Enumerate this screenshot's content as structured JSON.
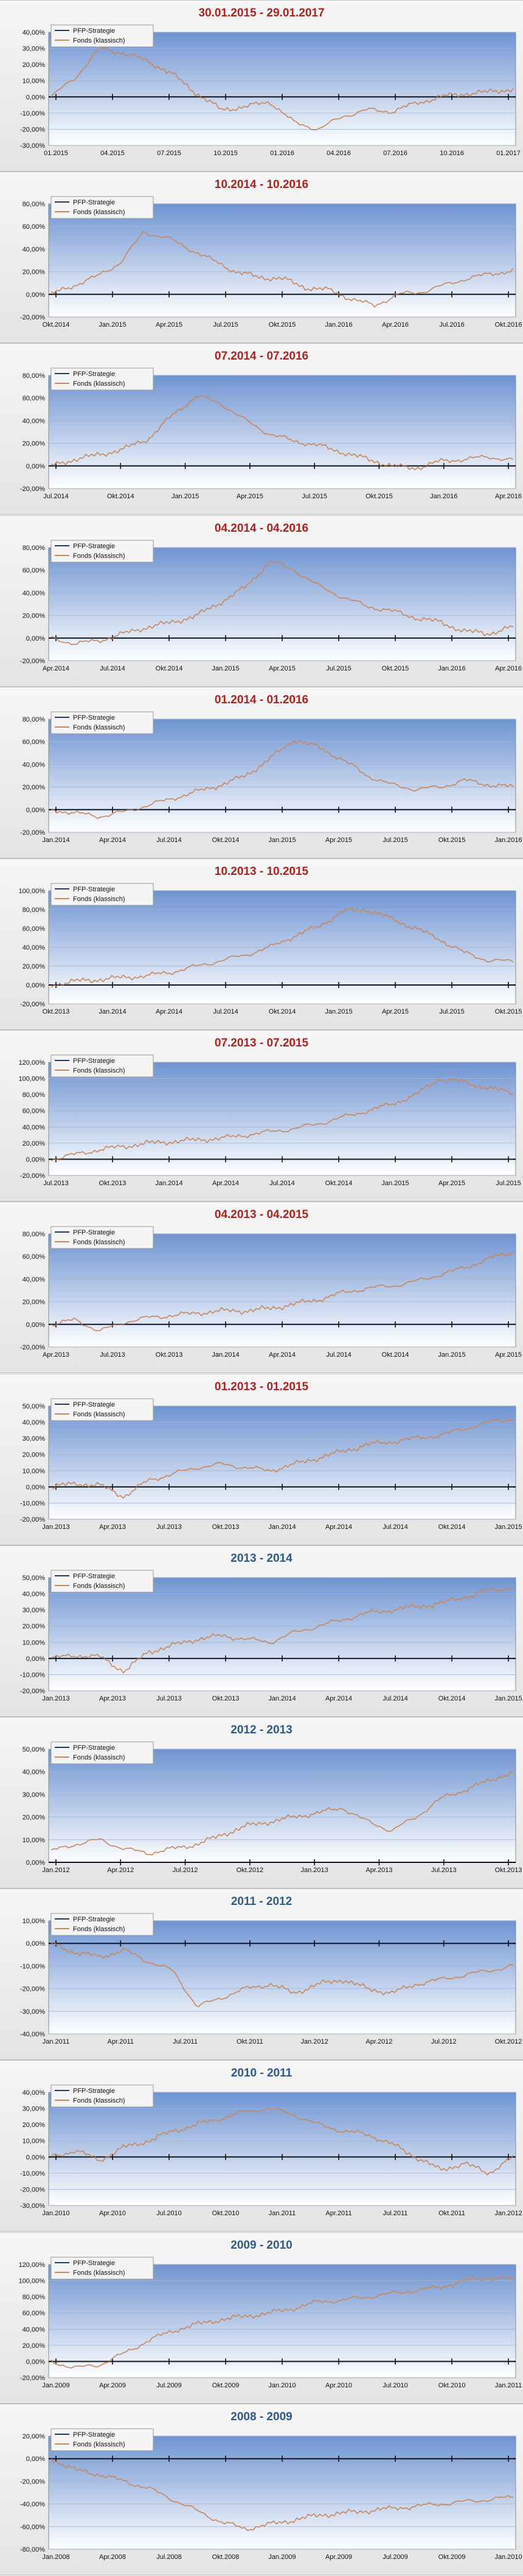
{
  "colors": {
    "strategy": "#1f3864",
    "fund": "#c8865a",
    "title_recent": "#b21f1f",
    "title_annual": "#2e5a8a",
    "plot_top": "#6f94d2",
    "plot_bottom": "#ffffff"
  },
  "legend": {
    "strategy": "PFP-Strategie",
    "fund": "Fonds (klassisch)"
  },
  "chart_data": [
    {
      "type": "line",
      "title": "30.01.2015 - 29.01.2017",
      "title_style": "recent",
      "yticks": [
        40,
        30,
        20,
        10,
        0,
        -10,
        -20,
        -30
      ],
      "ylim": [
        -30,
        40
      ],
      "x_labels": [
        "01.2015",
        "04.2015",
        "07.2015",
        "10.2015",
        "01.2016",
        "04.2016",
        "07.2016",
        "10.2016",
        "01.2017"
      ],
      "series": [
        {
          "name": "Fonds (klassisch)",
          "values": [
            0,
            12,
            30,
            27,
            22,
            14,
            2,
            -8,
            -6,
            -3,
            -16,
            -20,
            -12,
            -8,
            -9,
            -4,
            0,
            2,
            3,
            5
          ]
        },
        {
          "name": "PFP-Strategie",
          "values": [
            0,
            0,
            0,
            0,
            0,
            0,
            0,
            0,
            0,
            0,
            0,
            0,
            0,
            0,
            0,
            0,
            0,
            0,
            0,
            0
          ]
        }
      ]
    },
    {
      "type": "line",
      "title": "10.2014 - 10.2016",
      "title_style": "recent",
      "yticks": [
        80,
        60,
        40,
        20,
        0,
        -20
      ],
      "ylim": [
        -20,
        80
      ],
      "x_labels": [
        "Okt.2014",
        "Jan.2015",
        "Apr.2015",
        "Jul.2015",
        "Okt.2015",
        "Jan.2016",
        "Apr.2016",
        "Jul.2016",
        "Okt.2016"
      ],
      "series": [
        {
          "name": "Fonds (klassisch)",
          "values": [
            0,
            8,
            16,
            28,
            55,
            50,
            40,
            30,
            20,
            15,
            14,
            6,
            4,
            -4,
            -10,
            0,
            2,
            8,
            14,
            18,
            21
          ]
        },
        {
          "name": "PFP-Strategie",
          "values": [
            0,
            0,
            0,
            0,
            0,
            0,
            0,
            0,
            0,
            0,
            0,
            0,
            0,
            0,
            0,
            0,
            0,
            0,
            0,
            0,
            0
          ]
        }
      ]
    },
    {
      "type": "line",
      "title": "07.2014 - 07.2016",
      "title_style": "recent",
      "yticks": [
        80,
        60,
        40,
        20,
        0,
        -20
      ],
      "ylim": [
        -20,
        80
      ],
      "x_labels": [
        "Jul.2014",
        "Okt.2014",
        "Jan.2015",
        "Apr.2015",
        "Jul.2015",
        "Okt.2015",
        "Jan.2016",
        "Apr.2016"
      ],
      "series": [
        {
          "name": "Fonds (klassisch)",
          "values": [
            0,
            6,
            10,
            15,
            24,
            45,
            62,
            55,
            40,
            28,
            22,
            18,
            12,
            6,
            0,
            -2,
            4,
            6,
            8,
            5
          ]
        },
        {
          "name": "PFP-Strategie",
          "values": [
            0,
            0,
            0,
            0,
            0,
            0,
            0,
            0,
            0,
            0,
            0,
            0,
            0,
            0,
            0,
            0,
            0,
            0,
            0,
            0
          ]
        }
      ]
    },
    {
      "type": "line",
      "title": "04.2014 - 04.2016",
      "title_style": "recent",
      "yticks": [
        80,
        60,
        40,
        20,
        0,
        -20
      ],
      "ylim": [
        -20,
        80
      ],
      "x_labels": [
        "Apr.2014",
        "Jul.2014",
        "Okt.2014",
        "Jan.2015",
        "Apr.2015",
        "Jul.2015",
        "Okt.2015",
        "Jan.2016",
        "Apr.2016"
      ],
      "series": [
        {
          "name": "Fonds (klassisch)",
          "values": [
            0,
            -5,
            -2,
            4,
            10,
            14,
            20,
            32,
            45,
            68,
            60,
            46,
            36,
            28,
            24,
            18,
            14,
            6,
            4,
            10
          ]
        },
        {
          "name": "PFP-Strategie",
          "values": [
            0,
            0,
            0,
            0,
            0,
            0,
            0,
            0,
            0,
            0,
            0,
            0,
            0,
            0,
            0,
            0,
            0,
            0,
            0,
            0
          ]
        }
      ]
    },
    {
      "type": "line",
      "title": "01.2014 - 01.2016",
      "title_style": "recent",
      "yticks": [
        80,
        60,
        40,
        20,
        0,
        -20
      ],
      "ylim": [
        -20,
        80
      ],
      "x_labels": [
        "Jan.2014",
        "Apr.2014",
        "Jul.2014",
        "Okt.2014",
        "Jan.2015",
        "Apr.2015",
        "Jul.2015",
        "Okt.2015",
        "Jan.2016"
      ],
      "series": [
        {
          "name": "Fonds (klassisch)",
          "values": [
            0,
            -3,
            -6,
            -2,
            4,
            10,
            16,
            22,
            30,
            45,
            62,
            55,
            44,
            30,
            22,
            18,
            20,
            26,
            22,
            20
          ]
        },
        {
          "name": "PFP-Strategie",
          "values": [
            0,
            0,
            0,
            0,
            0,
            0,
            0,
            0,
            0,
            0,
            0,
            0,
            0,
            0,
            0,
            0,
            0,
            0,
            0,
            0
          ]
        }
      ]
    },
    {
      "type": "line",
      "title": "10.2013 - 10.2015",
      "title_style": "recent",
      "yticks": [
        100,
        80,
        60,
        40,
        20,
        0,
        -20
      ],
      "ylim": [
        -20,
        100
      ],
      "x_labels": [
        "Okt.2013",
        "Jan.2014",
        "Apr.2014",
        "Jul.2014",
        "Okt.2014",
        "Jan.2015",
        "Apr.2015",
        "Jul.2015",
        "Okt.2015"
      ],
      "series": [
        {
          "name": "Fonds (klassisch)",
          "values": [
            0,
            4,
            6,
            8,
            10,
            14,
            20,
            26,
            32,
            40,
            52,
            62,
            78,
            80,
            70,
            60,
            48,
            34,
            26,
            25
          ]
        },
        {
          "name": "PFP-Strategie",
          "values": [
            0,
            0,
            0,
            0,
            0,
            0,
            0,
            0,
            0,
            0,
            0,
            0,
            0,
            0,
            0,
            0,
            0,
            0,
            0,
            0
          ]
        }
      ]
    },
    {
      "type": "line",
      "title": "07.2013 - 07.2015",
      "title_style": "recent",
      "yticks": [
        120,
        100,
        80,
        60,
        40,
        20,
        0,
        -20
      ],
      "ylim": [
        -20,
        120
      ],
      "x_labels": [
        "Jul.2013",
        "Okt.2013",
        "Jan.2014",
        "Apr.2014",
        "Jul.2014",
        "Okt.2014",
        "Jan.2015",
        "Apr.2015",
        "Jul.2015"
      ],
      "series": [
        {
          "name": "Fonds (klassisch)",
          "values": [
            0,
            6,
            12,
            16,
            20,
            22,
            24,
            26,
            30,
            34,
            38,
            44,
            52,
            60,
            68,
            80,
            100,
            95,
            88,
            82
          ]
        },
        {
          "name": "PFP-Strategie",
          "values": [
            0,
            0,
            0,
            0,
            0,
            0,
            0,
            0,
            0,
            0,
            0,
            0,
            0,
            0,
            0,
            0,
            0,
            0,
            0,
            0
          ]
        }
      ]
    },
    {
      "type": "line",
      "title": "04.2013 - 04.2015",
      "title_style": "recent",
      "yticks": [
        80,
        60,
        40,
        20,
        0,
        -20
      ],
      "ylim": [
        -20,
        80
      ],
      "x_labels": [
        "Apr.2013",
        "Jul.2013",
        "Okt.2013",
        "Jan.2014",
        "Apr.2014",
        "Jul.2014",
        "Okt.2014",
        "Jan.2015",
        "Apr.2015"
      ],
      "series": [
        {
          "name": "Fonds (klassisch)",
          "values": [
            0,
            4,
            -6,
            2,
            6,
            8,
            10,
            12,
            12,
            14,
            18,
            22,
            28,
            32,
            34,
            38,
            44,
            50,
            58,
            64
          ]
        },
        {
          "name": "PFP-Strategie",
          "values": [
            0,
            0,
            0,
            0,
            0,
            0,
            0,
            0,
            0,
            0,
            0,
            0,
            0,
            0,
            0,
            0,
            0,
            0,
            0,
            0
          ]
        }
      ]
    },
    {
      "type": "line",
      "title": "01.2013 - 01.2015",
      "title_style": "recent",
      "yticks": [
        50,
        40,
        30,
        20,
        10,
        0,
        -10,
        -20
      ],
      "ylim": [
        -20,
        50
      ],
      "x_labels": [
        "Jan.2013",
        "Apr.2013",
        "Jul.2013",
        "Okt.2013",
        "Jan.2014",
        "Apr.2014",
        "Jul.2014",
        "Okt.2014",
        "Jan.2015"
      ],
      "series": [
        {
          "name": "Fonds (klassisch)",
          "values": [
            0,
            2,
            1,
            -6,
            4,
            8,
            12,
            14,
            12,
            10,
            14,
            18,
            22,
            26,
            28,
            30,
            32,
            36,
            40,
            42
          ]
        },
        {
          "name": "PFP-Strategie",
          "values": [
            0,
            0,
            0,
            0,
            0,
            0,
            0,
            0,
            0,
            0,
            0,
            0,
            0,
            0,
            0,
            0,
            0,
            0,
            0,
            0
          ]
        }
      ]
    },
    {
      "type": "line",
      "title": "2013 - 2014",
      "title_style": "annual",
      "yticks": [
        50,
        40,
        30,
        20,
        10,
        0,
        -10,
        -20
      ],
      "ylim": [
        -20,
        50
      ],
      "x_labels": [
        "Jan.2013",
        "Apr.2013",
        "Jul.2013",
        "Okt.2013",
        "Jan.2014",
        "Apr.2014",
        "Jul.2014",
        "Okt.2014",
        "Jan.2015"
      ],
      "series": [
        {
          "name": "Fonds (klassisch)",
          "values": [
            0,
            2,
            1,
            -8,
            4,
            8,
            12,
            14,
            12,
            10,
            16,
            20,
            24,
            28,
            30,
            32,
            34,
            38,
            42,
            44
          ]
        },
        {
          "name": "PFP-Strategie",
          "values": [
            0,
            0,
            0,
            0,
            0,
            0,
            0,
            0,
            0,
            0,
            0,
            0,
            0,
            0,
            0,
            0,
            0,
            0,
            0,
            0
          ]
        }
      ]
    },
    {
      "type": "line",
      "title": "2012 - 2013",
      "title_style": "annual",
      "yticks": [
        50,
        40,
        30,
        20,
        10,
        0
      ],
      "ylim": [
        0,
        50
      ],
      "x_labels": [
        "Jan.2012",
        "Apr.2012",
        "Jul.2012",
        "Okt.2012",
        "Jan.2013",
        "Apr.2013",
        "Jul.2013",
        "Okt.2013"
      ],
      "series": [
        {
          "name": "Fonds (klassisch)",
          "values": [
            5,
            8,
            10,
            6,
            4,
            6,
            8,
            12,
            16,
            18,
            20,
            22,
            24,
            18,
            14,
            20,
            28,
            32,
            36,
            40
          ]
        },
        {
          "name": "PFP-Strategie",
          "values": [
            0,
            0,
            0,
            0,
            0,
            0,
            0,
            0,
            0,
            0,
            0,
            0,
            0,
            0,
            0,
            0,
            0,
            0,
            0,
            0
          ]
        }
      ]
    },
    {
      "type": "line",
      "title": "2011 - 2012",
      "title_style": "annual",
      "yticks": [
        10,
        0,
        -10,
        -20,
        -30,
        -40
      ],
      "ylim": [
        -40,
        10
      ],
      "x_labels": [
        "Jan.2011",
        "Apr.2011",
        "Jul.2011",
        "Okt.2011",
        "Jan.2012",
        "Apr.2012",
        "Jul.2012",
        "Okt.2012"
      ],
      "series": [
        {
          "name": "Fonds (klassisch)",
          "values": [
            0,
            -4,
            -6,
            -3,
            -8,
            -12,
            -28,
            -24,
            -20,
            -18,
            -22,
            -18,
            -16,
            -20,
            -22,
            -18,
            -16,
            -14,
            -12,
            -10
          ]
        },
        {
          "name": "PFP-Strategie",
          "values": [
            0,
            0,
            0,
            0,
            0,
            0,
            0,
            0,
            0,
            0,
            0,
            0,
            0,
            0,
            0,
            0,
            0,
            0,
            0,
            0
          ]
        }
      ]
    },
    {
      "type": "line",
      "title": "2010 - 2011",
      "title_style": "annual",
      "yticks": [
        40,
        30,
        20,
        10,
        0,
        -10,
        -20,
        -30
      ],
      "ylim": [
        -30,
        40
      ],
      "x_labels": [
        "Jan.2010",
        "Apr.2010",
        "Jul.2010",
        "Okt.2010",
        "Jan.2011",
        "Apr.2011",
        "Jul.2011",
        "Okt.2011",
        "Jan.2012"
      ],
      "series": [
        {
          "name": "Fonds (klassisch)",
          "values": [
            0,
            4,
            -2,
            6,
            10,
            16,
            20,
            24,
            28,
            30,
            26,
            20,
            16,
            14,
            8,
            0,
            -8,
            -4,
            -10,
            0
          ]
        },
        {
          "name": "PFP-Strategie",
          "values": [
            0,
            0,
            0,
            0,
            0,
            0,
            0,
            0,
            0,
            0,
            0,
            0,
            0,
            0,
            0,
            0,
            0,
            0,
            0,
            0
          ]
        }
      ]
    },
    {
      "type": "line",
      "title": "2009 - 2010",
      "title_style": "annual",
      "yticks": [
        120,
        100,
        80,
        60,
        40,
        20,
        0,
        -20
      ],
      "ylim": [
        -20,
        120
      ],
      "x_labels": [
        "Jan.2009",
        "Apr.2009",
        "Jul.2009",
        "Okt.2009",
        "Jan.2010",
        "Apr.2010",
        "Jul.2010",
        "Okt.2010",
        "Jan.2011"
      ],
      "series": [
        {
          "name": "Fonds (klassisch)",
          "values": [
            0,
            -8,
            -4,
            10,
            26,
            38,
            46,
            52,
            56,
            60,
            66,
            74,
            76,
            80,
            84,
            88,
            92,
            100,
            104,
            102
          ]
        },
        {
          "name": "PFP-Strategie",
          "values": [
            0,
            0,
            0,
            0,
            0,
            0,
            0,
            0,
            0,
            0,
            0,
            0,
            0,
            0,
            0,
            0,
            0,
            0,
            0,
            0
          ]
        }
      ]
    },
    {
      "type": "line",
      "title": "2008 - 2009",
      "title_style": "annual",
      "yticks": [
        20,
        0,
        -20,
        -40,
        -60,
        -80
      ],
      "ylim": [
        -80,
        20
      ],
      "x_labels": [
        "Jan.2008",
        "Apr.2008",
        "Jul.2008",
        "Okt.2008",
        "Jan.2009",
        "Apr.2009",
        "Jul.2009",
        "Okt.2009",
        "Jan.2010"
      ],
      "series": [
        {
          "name": "Fonds (klassisch)",
          "values": [
            0,
            -10,
            -14,
            -20,
            -26,
            -36,
            -46,
            -56,
            -62,
            -58,
            -54,
            -50,
            -48,
            -46,
            -44,
            -42,
            -40,
            -38,
            -36,
            -34
          ]
        },
        {
          "name": "PFP-Strategie",
          "values": [
            0,
            0,
            0,
            0,
            0,
            0,
            0,
            0,
            0,
            0,
            0,
            0,
            0,
            0,
            0,
            0,
            0,
            0,
            0,
            0
          ]
        }
      ]
    }
  ]
}
